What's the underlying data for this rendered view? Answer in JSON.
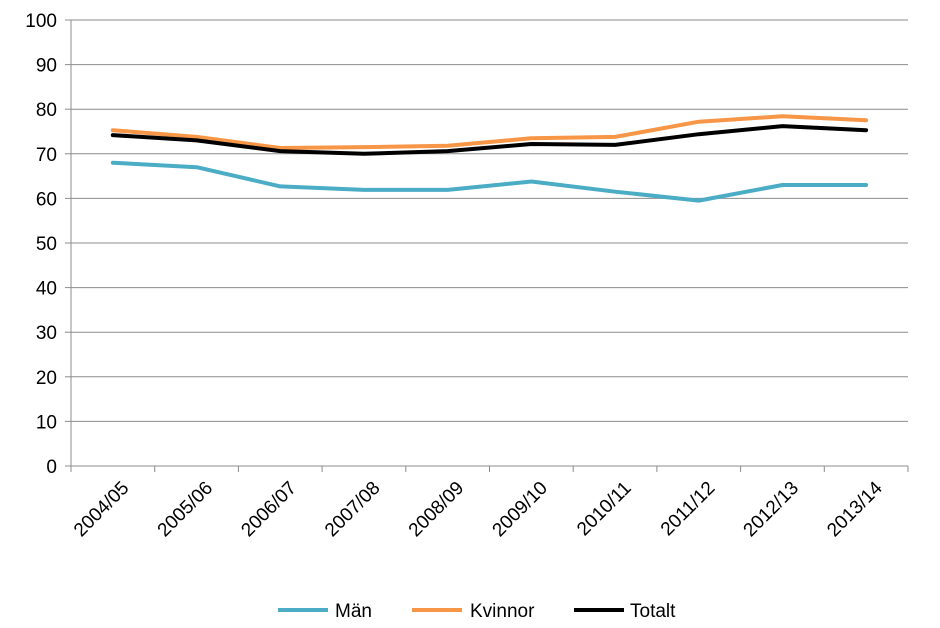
{
  "chart_data": {
    "type": "line",
    "title": "",
    "xlabel": "",
    "ylabel": "",
    "categories": [
      "2004/05",
      "2005/06",
      "2006/07",
      "2007/08",
      "2008/09",
      "2009/10",
      "2010/11",
      "2011/12",
      "2012/13",
      "2013/14"
    ],
    "ylim": [
      0,
      100
    ],
    "yticks": [
      0,
      10,
      20,
      30,
      40,
      50,
      60,
      70,
      80,
      90,
      100
    ],
    "grid": true,
    "legend_position": "bottom",
    "series": [
      {
        "name": "Män",
        "color": "#4BACC6",
        "values": [
          68,
          67,
          62.7,
          61.9,
          61.9,
          63.8,
          61.5,
          59.5,
          63,
          63
        ]
      },
      {
        "name": "Kvinnor",
        "color": "#F79646",
        "values": [
          75.3,
          73.8,
          71.3,
          71.5,
          71.8,
          73.5,
          73.8,
          77.2,
          78.4,
          77.5
        ]
      },
      {
        "name": "Totalt",
        "color": "#000000",
        "values": [
          74.2,
          73,
          70.6,
          70,
          70.6,
          72.2,
          72,
          74.4,
          76.2,
          75.3
        ]
      }
    ]
  }
}
